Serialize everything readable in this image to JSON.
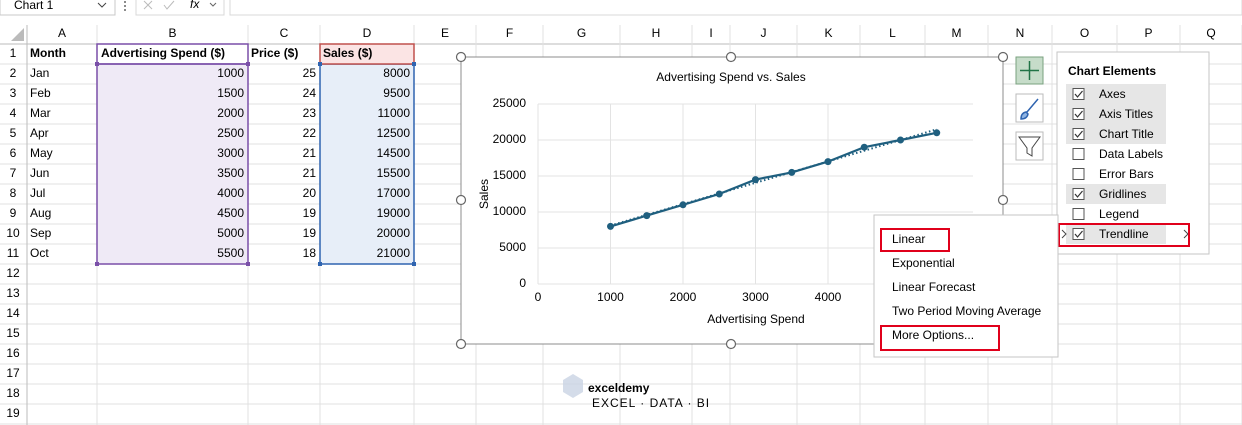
{
  "formula_bar": {
    "name_box": "Chart 1",
    "function_label": "fx"
  },
  "sheet": {
    "columns": [
      "A",
      "B",
      "C",
      "D",
      "E",
      "F",
      "G",
      "H",
      "I",
      "J",
      "K",
      "L",
      "M",
      "N",
      "O",
      "P",
      "Q"
    ],
    "rows": [
      1,
      2,
      3,
      4,
      5,
      6,
      7,
      8,
      9,
      10,
      11,
      12,
      13,
      14,
      15,
      16,
      17,
      18,
      19
    ],
    "header": [
      "Month",
      "Advertising Spend ($)",
      "Price ($)",
      "Sales ($)"
    ],
    "data": [
      [
        "Jan",
        1000,
        25,
        8000
      ],
      [
        "Feb",
        1500,
        24,
        9500
      ],
      [
        "Mar",
        2000,
        23,
        11000
      ],
      [
        "Apr",
        2500,
        22,
        12500
      ],
      [
        "May",
        3000,
        21,
        14500
      ],
      [
        "Jun",
        3500,
        21,
        15500
      ],
      [
        "Jul",
        4000,
        20,
        17000
      ],
      [
        "Aug",
        4500,
        19,
        19000
      ],
      [
        "Sep",
        5000,
        19,
        20000
      ],
      [
        "Oct",
        5500,
        18,
        21000
      ]
    ]
  },
  "chart": {
    "type": "line",
    "title": "Advertising Spend vs. Sales",
    "x_label": "Advertising Spend",
    "y_label": "Sales",
    "x": [
      1000,
      1500,
      2000,
      2500,
      3000,
      3500,
      4000,
      4500,
      5000,
      5500
    ],
    "values": [
      8000,
      9500,
      11000,
      12500,
      14500,
      15500,
      17000,
      19000,
      20000,
      21000
    ],
    "color": "#1f5f7f",
    "xlim": [
      0,
      6000
    ],
    "xticks": [
      0,
      1000,
      2000,
      3000,
      4000
    ],
    "ylim": [
      0,
      25000
    ],
    "yticks": [
      0,
      5000,
      10000,
      15000,
      20000,
      25000
    ],
    "grid": true,
    "trendline": "linear"
  },
  "chart_elements": {
    "title": "Chart Elements",
    "items": [
      {
        "label": "Axes",
        "checked": true
      },
      {
        "label": "Axis Titles",
        "checked": true
      },
      {
        "label": "Chart Title",
        "checked": true
      },
      {
        "label": "Data Labels",
        "checked": false
      },
      {
        "label": "Error Bars",
        "checked": false
      },
      {
        "label": "Gridlines",
        "checked": true
      },
      {
        "label": "Legend",
        "checked": false
      },
      {
        "label": "Trendline",
        "checked": true
      }
    ]
  },
  "trendline_menu": {
    "items": [
      "Linear",
      "Exponential",
      "Linear Forecast",
      "Two Period Moving Average",
      "More Options..."
    ]
  },
  "watermark": {
    "name": "exceldemy",
    "tagline": "EXCEL · DATA · BI"
  }
}
